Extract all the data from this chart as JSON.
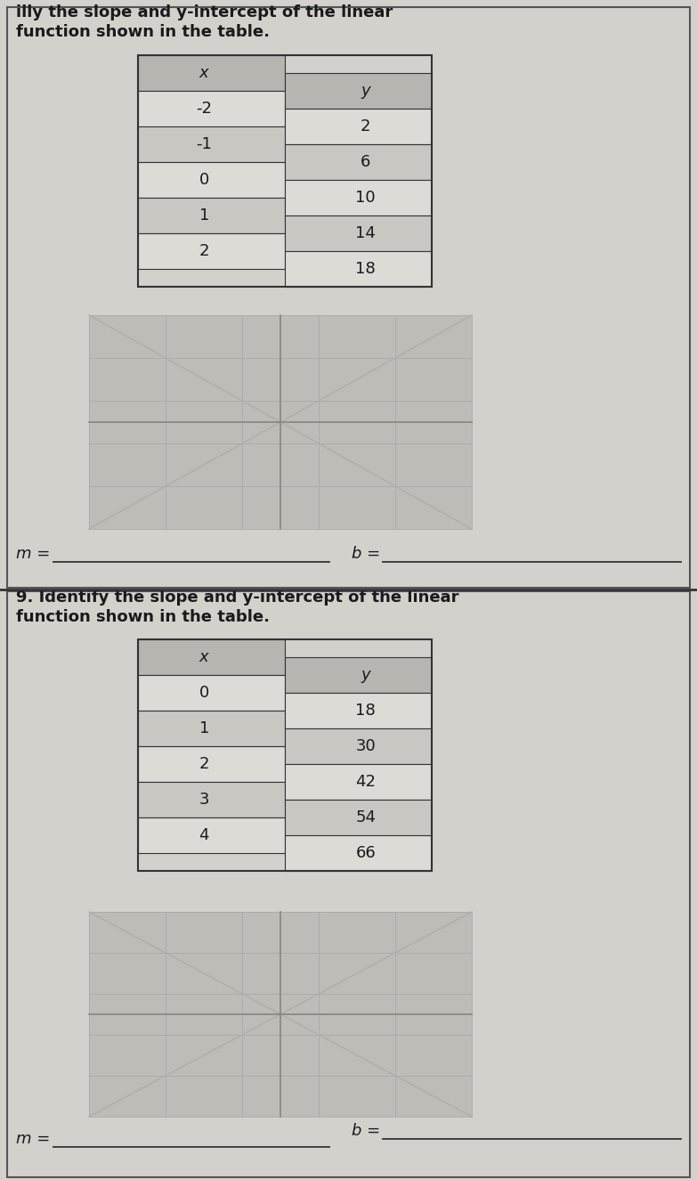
{
  "page_bg": "#c8c5c2",
  "panel_bg": "#d4d0cc",
  "white_cell": "#dedad6",
  "gray_cell": "#cac6c2",
  "header_cell": "#b8b4b0",
  "border_dark": "#333333",
  "border_mid": "#555555",
  "text_dark": "#1a1a1a",
  "text_mid": "#2a2a2a",
  "section1": {
    "title_line1": "illy the slope and y-intercept of the linear",
    "title_line2": "function shown in the table.",
    "x_vals": [
      "x",
      "-2",
      "-1",
      "0",
      "1",
      "2"
    ],
    "y_vals": [
      "y",
      "2",
      "6",
      "10",
      "14",
      "18"
    ],
    "m_label": "m =",
    "b_label": "b ="
  },
  "section2": {
    "title_line1": "9. Identify the slope and y-intercept of the linear",
    "title_line2": "function shown in the table.",
    "x_vals": [
      "x",
      "0",
      "1",
      "2",
      "3",
      "4"
    ],
    "y_vals": [
      "y",
      "18",
      "30",
      "42",
      "54",
      "66"
    ],
    "m_label": "m =",
    "b_label": "b ="
  }
}
